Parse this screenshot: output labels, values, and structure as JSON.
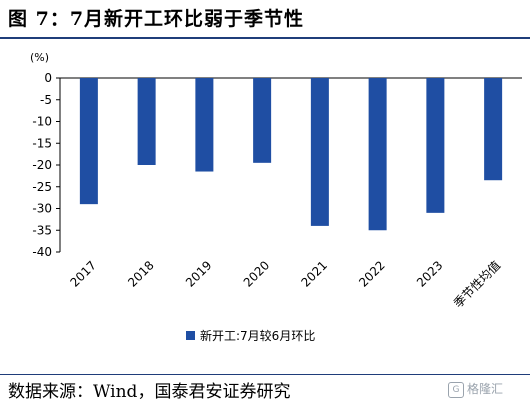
{
  "title": "图 7：7月新开工环比弱于季节性",
  "source": "数据来源：Wind，国泰君安证券研究",
  "watermark": {
    "icon": "gelonghui-logo-icon",
    "text": "格隆汇"
  },
  "colors": {
    "bar": "#1f4ea3",
    "rule": "#1f3d7a"
  },
  "chart_data": {
    "type": "bar",
    "unit_label": "(%)",
    "categories": [
      "2017",
      "2018",
      "2019",
      "2020",
      "2021",
      "2022",
      "2023",
      "季节性均值"
    ],
    "series": [
      {
        "name": "新开工:7月较6月环比",
        "values": [
          -29,
          -20,
          -21.5,
          -19.5,
          -34,
          -35,
          -31,
          -23.5
        ]
      }
    ],
    "ylim": [
      -40,
      0
    ],
    "yticks": [
      0,
      -5,
      -10,
      -15,
      -20,
      -25,
      -30,
      -35,
      -40
    ],
    "grid": false,
    "legend_position": "bottom"
  }
}
